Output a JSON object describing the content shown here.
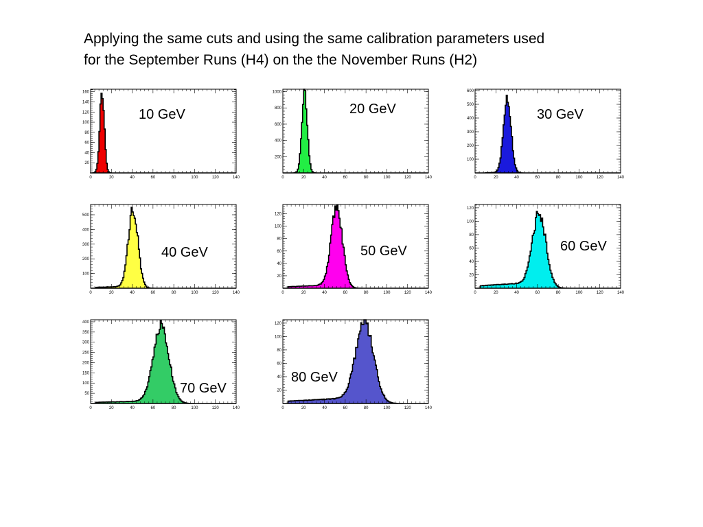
{
  "slide": {
    "title_line1": "Applying the same cuts and using the same calibration parameters used",
    "title_line2": "for the September Runs (H4) on the the November Runs (H2)"
  },
  "chart_data": [
    {
      "type": "area",
      "label": "10  GeV",
      "color": "#ee0000",
      "xlim": [
        0,
        140
      ],
      "x_ticks": [
        0,
        20,
        40,
        60,
        80,
        100,
        120,
        140
      ],
      "ylim": [
        0,
        165
      ],
      "y_ticks": [
        20,
        40,
        60,
        80,
        100,
        120,
        140,
        160
      ],
      "mean": 11,
      "sigma": 2.2,
      "peak": 160,
      "tail_amp": 0,
      "tail_start": 0
    },
    {
      "type": "area",
      "label": "20  GeV",
      "color": "#22ee44",
      "xlim": [
        0,
        140
      ],
      "x_ticks": [
        0,
        20,
        40,
        60,
        80,
        100,
        120,
        140
      ],
      "ylim": [
        0,
        1030
      ],
      "y_ticks": [
        200,
        400,
        600,
        800,
        1000
      ],
      "mean": 21,
      "sigma": 2.6,
      "peak": 1000,
      "tail_amp": 0,
      "tail_start": 0
    },
    {
      "type": "area",
      "label": "30  GeV",
      "color": "#1a1add",
      "xlim": [
        0,
        140
      ],
      "x_ticks": [
        0,
        20,
        40,
        60,
        80,
        100,
        120,
        140
      ],
      "ylim": [
        0,
        610
      ],
      "y_ticks": [
        100,
        200,
        300,
        400,
        500,
        600
      ],
      "mean": 31,
      "sigma": 3.6,
      "peak": 560,
      "tail_amp": 4,
      "tail_start": 10
    },
    {
      "type": "area",
      "label": "40  GeV",
      "color": "#ffff44",
      "xlim": [
        0,
        140
      ],
      "x_ticks": [
        0,
        20,
        40,
        60,
        80,
        100,
        120,
        140
      ],
      "ylim": [
        0,
        570
      ],
      "y_ticks": [
        100,
        200,
        300,
        400,
        500
      ],
      "mean": 41,
      "sigma": 4.6,
      "peak": 540,
      "tail_amp": 14,
      "tail_start": 5
    },
    {
      "type": "area",
      "label": "50  GeV",
      "color": "#ff00ee",
      "xlim": [
        0,
        140
      ],
      "x_ticks": [
        0,
        20,
        40,
        60,
        80,
        100,
        120,
        140
      ],
      "ylim": [
        0,
        135
      ],
      "y_ticks": [
        20,
        40,
        60,
        80,
        100,
        120
      ],
      "mean": 52,
      "sigma": 5.5,
      "peak": 125,
      "tail_amp": 6,
      "tail_start": 5
    },
    {
      "type": "area",
      "label": "60  GeV",
      "color": "#00eeee",
      "xlim": [
        0,
        140
      ],
      "x_ticks": [
        0,
        20,
        40,
        60,
        80,
        100,
        120,
        140
      ],
      "ylim": [
        0,
        125
      ],
      "y_ticks": [
        20,
        40,
        60,
        80,
        100,
        120
      ],
      "mean": 62,
      "sigma": 6.5,
      "peak": 108,
      "tail_amp": 9,
      "tail_start": 5
    },
    {
      "type": "area",
      "label": "70  GeV",
      "color": "#33cc66",
      "xlim": [
        0,
        140
      ],
      "x_ticks": [
        0,
        20,
        40,
        60,
        80,
        100,
        120,
        140
      ],
      "ylim": [
        0,
        410
      ],
      "y_ticks": [
        50,
        100,
        150,
        200,
        250,
        300,
        350,
        400
      ],
      "mean": 68,
      "sigma": 7.5,
      "peak": 370,
      "tail_amp": 14,
      "tail_start": 5
    },
    {
      "type": "area",
      "label": "80  GeV",
      "color": "#5555cc",
      "xlim": [
        0,
        140
      ],
      "x_ticks": [
        0,
        20,
        40,
        60,
        80,
        100,
        120,
        140
      ],
      "ylim": [
        0,
        125
      ],
      "y_ticks": [
        20,
        40,
        60,
        80,
        100,
        120
      ],
      "mean": 79,
      "sigma": 8.5,
      "peak": 118,
      "tail_amp": 9,
      "tail_start": 5
    }
  ]
}
